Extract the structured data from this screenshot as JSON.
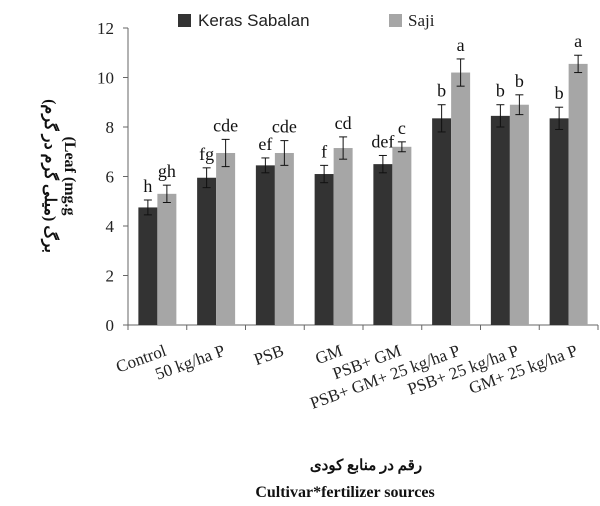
{
  "chart_data": {
    "type": "bar",
    "categories": [
      "Control",
      "50 kg/ha P",
      "PSB",
      "GM",
      "PSB+ GM",
      "PSB+ GM+ 25 kg/ha P",
      "PSB+ 25 kg/ha P",
      "GM+ 25 kg/ha P"
    ],
    "series": [
      {
        "name": "Keras Sabalan",
        "color": "#333333",
        "values": [
          4.75,
          5.95,
          6.45,
          6.1,
          6.5,
          8.35,
          8.45,
          8.35
        ],
        "errors": [
          0.3,
          0.4,
          0.3,
          0.35,
          0.35,
          0.55,
          0.45,
          0.45
        ],
        "letters": [
          "h",
          "fg",
          "ef",
          "f",
          "def",
          "b",
          "b",
          "b"
        ]
      },
      {
        "name": "Saji",
        "color": "#a6a6a6",
        "values": [
          5.3,
          6.95,
          6.95,
          7.15,
          7.2,
          10.2,
          8.9,
          10.55
        ],
        "errors": [
          0.35,
          0.55,
          0.5,
          0.45,
          0.2,
          0.55,
          0.4,
          0.35
        ],
        "letters": [
          "gh",
          "cde",
          "cde",
          "cd",
          "c",
          "a",
          "b",
          "a"
        ]
      }
    ],
    "ylim": [
      0,
      12
    ],
    "yticks": [
      "0",
      "2",
      "4",
      "6",
      "8",
      "10",
      "12"
    ],
    "ylabel_lines": [
      "برگ (میلی گرم در گرم)",
      "(Leaf (mg.g"
    ],
    "xlabel_lines": [
      "رقم در منابع کودی",
      "Cultivar*fertilizer sources"
    ],
    "legend_position": "top",
    "grid": false
  }
}
